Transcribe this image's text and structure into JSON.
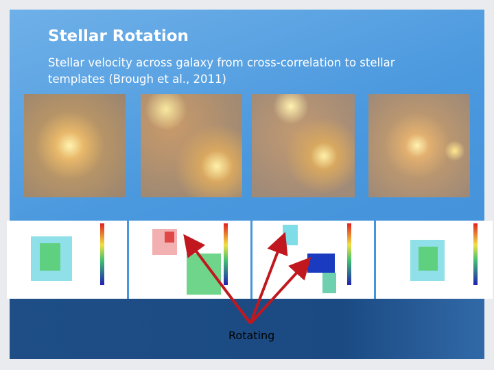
{
  "slide": {
    "title": "Stellar Rotation",
    "body_lines": [
      "Stellar velocity across galaxy from cross-correlation to stellar",
      "templates (Brough et al., 2011)"
    ],
    "annotation": "Rotating"
  }
}
